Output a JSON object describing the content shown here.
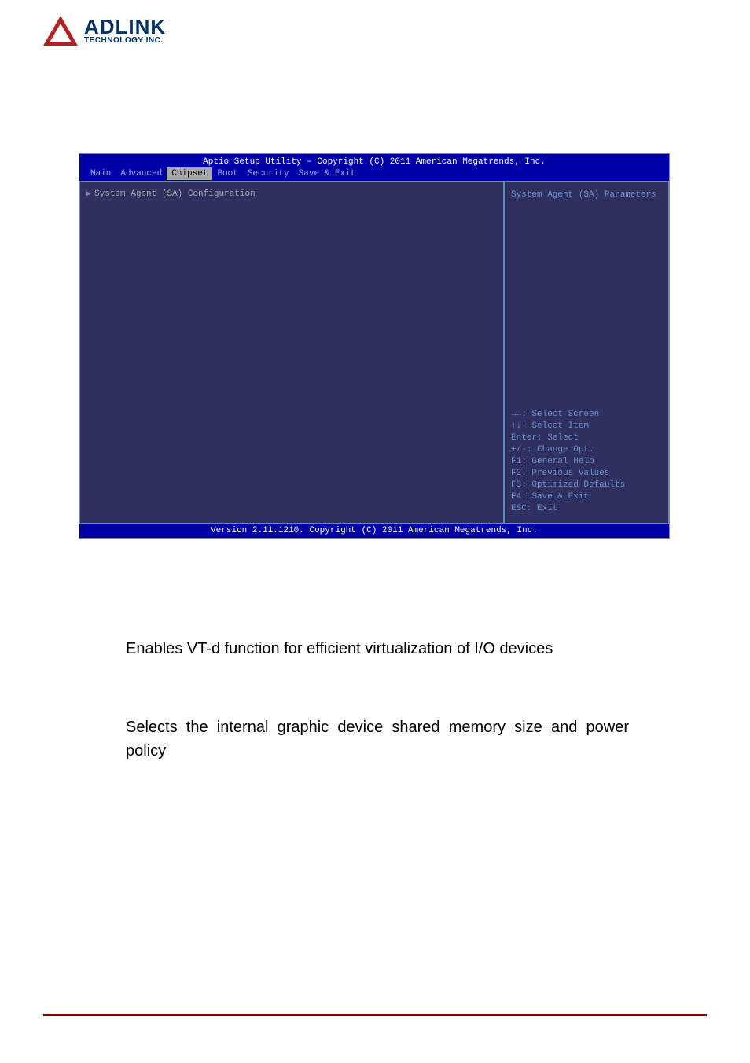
{
  "logo": {
    "main": "ADLINK",
    "sub": "TECHNOLOGY INC."
  },
  "bios": {
    "title": "Aptio Setup Utility – Copyright (C) 2011 American Megatrends, Inc.",
    "tabs": [
      "Main",
      "Advanced",
      "Chipset",
      "Boot",
      "Security",
      "Save & Exit"
    ],
    "active_tab_index": 2,
    "left_item": "System Agent (SA) Configuration",
    "right_top": "System Agent (SA) Parameters",
    "help_keys": [
      "→←: Select Screen",
      "↑↓: Select Item",
      "Enter: Select",
      "+/-: Change Opt.",
      "F1: General Help",
      "F2: Previous Values",
      "F3: Optimized Defaults",
      "F4: Save & Exit",
      "ESC: Exit"
    ],
    "footer": "Version 2.11.1210. Copyright (C) 2011 American Megatrends, Inc.",
    "colors": {
      "header_bg": "#0000a8",
      "body_bg": "#303060",
      "border": "#6888c0",
      "text_help": "#6890d0",
      "text_item": "#a8a8a8",
      "tab_inactive": "#a8a8ff",
      "tab_active_bg": "#a8a8a8",
      "tab_active_fg": "#000000"
    }
  },
  "body_text": {
    "para1": "Enables VT-d function for efficient virtualization of I/O devices",
    "para2": "Selects the internal graphic device shared memory size and power policy"
  }
}
